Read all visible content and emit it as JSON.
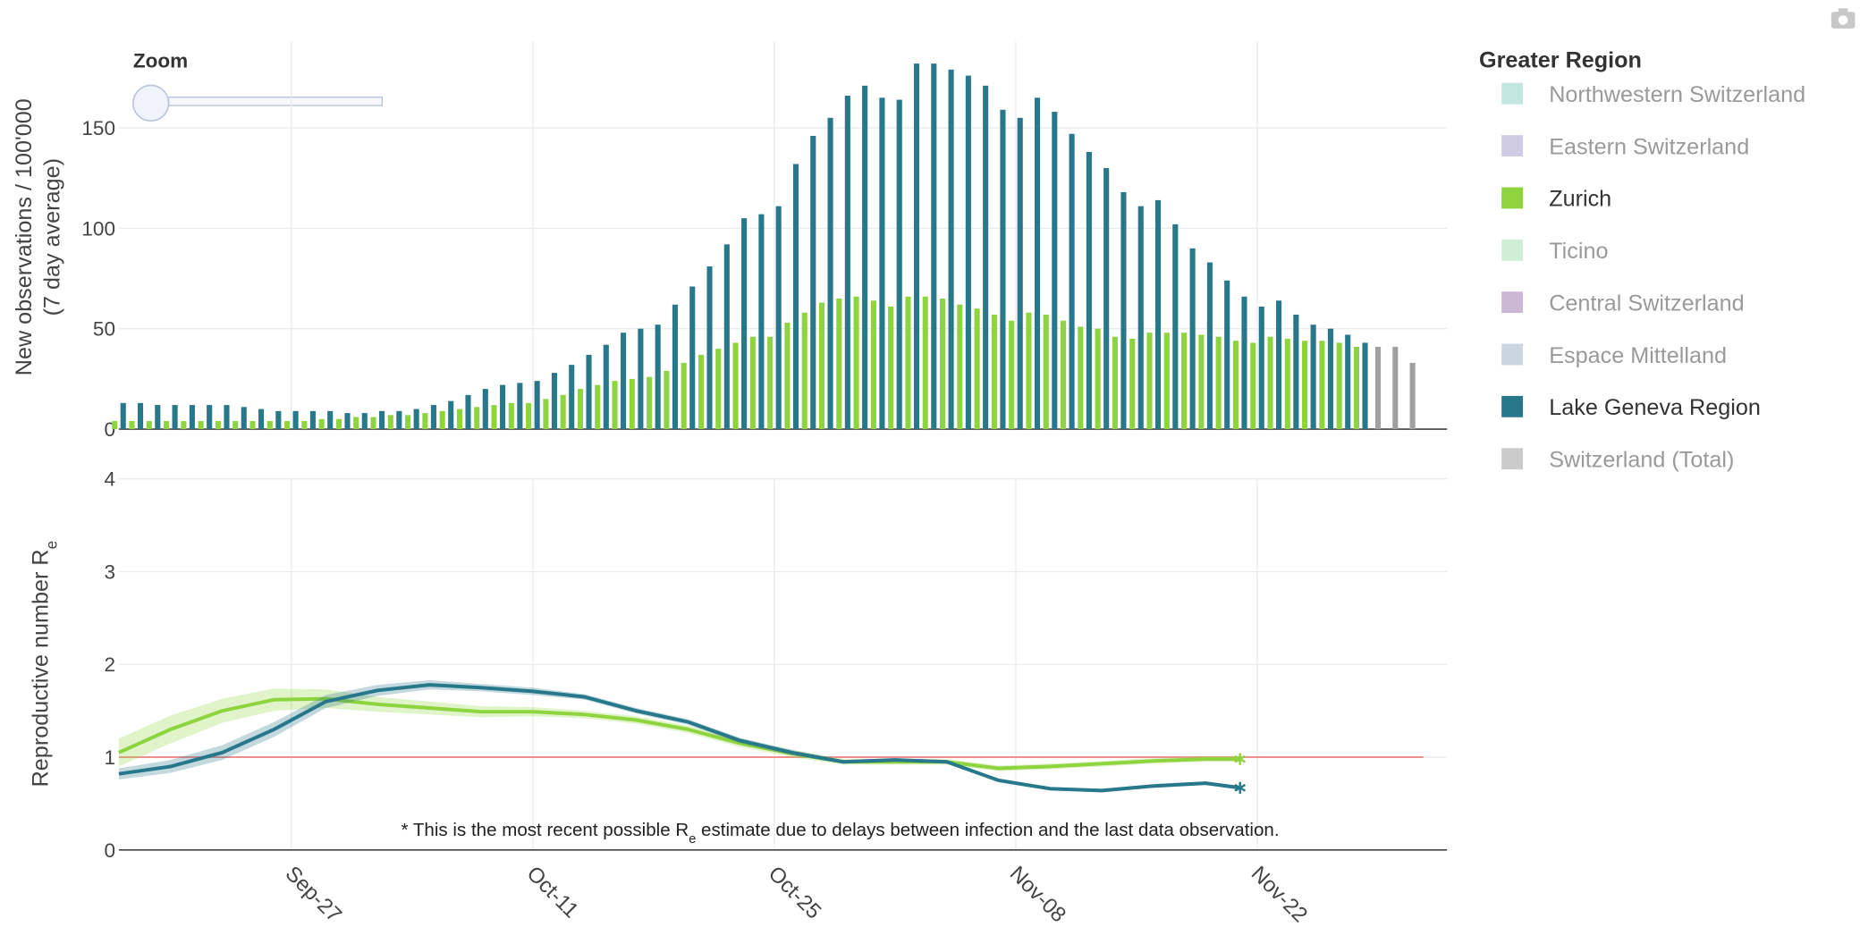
{
  "zoom": {
    "label": "Zoom"
  },
  "chart_data": [
    {
      "type": "bar",
      "ylabel": [
        "New observations / 100'000",
        "(7 day average)"
      ],
      "legend_title": "Greater Region",
      "xlim": [
        "Sep-17",
        "Dec-03"
      ],
      "xticks": [
        "Sep-27",
        "Oct-11",
        "Oct-25",
        "Nov-08",
        "Nov-22"
      ],
      "xtick_labels": false,
      "ylim": [
        0,
        193
      ],
      "yticks": [
        0,
        50,
        100,
        150
      ],
      "grid": true,
      "series": [
        {
          "name": "Northwestern Switzerland",
          "color": "#8fd3c4",
          "legend_active": false,
          "x": [],
          "values": []
        },
        {
          "name": "Eastern Switzerland",
          "color": "#a9a3cc",
          "legend_active": false,
          "x": [],
          "values": []
        },
        {
          "name": "Zurich",
          "color": "#8ed43e",
          "legend_active": true,
          "x": [
            "Sep-17",
            "Sep-18",
            "Sep-19",
            "Sep-20",
            "Sep-21",
            "Sep-22",
            "Sep-23",
            "Sep-24",
            "Sep-25",
            "Sep-26",
            "Sep-27",
            "Sep-28",
            "Sep-29",
            "Sep-30",
            "Oct-01",
            "Oct-02",
            "Oct-03",
            "Oct-04",
            "Oct-05",
            "Oct-06",
            "Oct-07",
            "Oct-08",
            "Oct-09",
            "Oct-10",
            "Oct-11",
            "Oct-12",
            "Oct-13",
            "Oct-14",
            "Oct-15",
            "Oct-16",
            "Oct-17",
            "Oct-18",
            "Oct-19",
            "Oct-20",
            "Oct-21",
            "Oct-22",
            "Oct-23",
            "Oct-24",
            "Oct-25",
            "Oct-26",
            "Oct-27",
            "Oct-28",
            "Oct-29",
            "Oct-30",
            "Oct-31",
            "Nov-01",
            "Nov-02",
            "Nov-03",
            "Nov-04",
            "Nov-05",
            "Nov-06",
            "Nov-07",
            "Nov-08",
            "Nov-09",
            "Nov-10",
            "Nov-11",
            "Nov-12",
            "Nov-13",
            "Nov-14",
            "Nov-15",
            "Nov-16",
            "Nov-17",
            "Nov-18",
            "Nov-19",
            "Nov-20",
            "Nov-21",
            "Nov-22",
            "Nov-23",
            "Nov-24",
            "Nov-25",
            "Nov-26",
            "Nov-27",
            "Nov-28"
          ],
          "values": [
            4,
            4,
            4,
            4,
            4,
            4,
            4,
            4,
            4,
            4,
            4,
            4,
            5,
            5,
            6,
            6,
            7,
            7,
            8,
            9,
            10,
            11,
            12,
            13,
            13,
            15,
            17,
            20,
            22,
            24,
            25,
            26,
            29,
            33,
            37,
            40,
            43,
            46,
            46,
            53,
            58,
            63,
            65,
            66,
            64,
            61,
            66,
            66,
            65,
            62,
            60,
            57,
            54,
            58,
            57,
            54,
            51,
            50,
            46,
            45,
            48,
            48,
            48,
            47,
            46,
            44,
            43,
            46,
            45,
            44,
            44,
            43,
            41
          ]
        },
        {
          "name": "Ticino",
          "color": "#a7e0b5",
          "legend_active": false,
          "x": [],
          "values": []
        },
        {
          "name": "Central Switzerland",
          "color": "#a07db4",
          "legend_active": false,
          "x": [],
          "values": []
        },
        {
          "name": "Espace Mittelland",
          "color": "#a0b0c8",
          "legend_active": false,
          "x": [],
          "values": []
        },
        {
          "name": "Lake Geneva Region",
          "color": "#27788a",
          "legend_active": true,
          "x": [
            "Sep-17",
            "Sep-18",
            "Sep-19",
            "Sep-20",
            "Sep-21",
            "Sep-22",
            "Sep-23",
            "Sep-24",
            "Sep-25",
            "Sep-26",
            "Sep-27",
            "Sep-28",
            "Sep-29",
            "Sep-30",
            "Oct-01",
            "Oct-02",
            "Oct-03",
            "Oct-04",
            "Oct-05",
            "Oct-06",
            "Oct-07",
            "Oct-08",
            "Oct-09",
            "Oct-10",
            "Oct-11",
            "Oct-12",
            "Oct-13",
            "Oct-14",
            "Oct-15",
            "Oct-16",
            "Oct-17",
            "Oct-18",
            "Oct-19",
            "Oct-20",
            "Oct-21",
            "Oct-22",
            "Oct-23",
            "Oct-24",
            "Oct-25",
            "Oct-26",
            "Oct-27",
            "Oct-28",
            "Oct-29",
            "Oct-30",
            "Oct-31",
            "Nov-01",
            "Nov-02",
            "Nov-03",
            "Nov-04",
            "Nov-05",
            "Nov-06",
            "Nov-07",
            "Nov-08",
            "Nov-09",
            "Nov-10",
            "Nov-11",
            "Nov-12",
            "Nov-13",
            "Nov-14",
            "Nov-15",
            "Nov-16",
            "Nov-17",
            "Nov-18",
            "Nov-19",
            "Nov-20",
            "Nov-21",
            "Nov-22",
            "Nov-23",
            "Nov-24",
            "Nov-25",
            "Nov-26",
            "Nov-27",
            "Nov-28"
          ],
          "values": [
            13,
            13,
            12,
            12,
            12,
            12,
            12,
            11,
            10,
            9,
            9,
            9,
            9,
            8,
            8,
            9,
            9,
            10,
            12,
            14,
            17,
            20,
            22,
            23,
            24,
            28,
            32,
            37,
            42,
            48,
            50,
            52,
            62,
            71,
            81,
            92,
            105,
            107,
            111,
            132,
            146,
            155,
            166,
            171,
            165,
            164,
            182,
            182,
            179,
            176,
            171,
            159,
            155,
            165,
            158,
            147,
            138,
            130,
            118,
            111,
            114,
            102,
            90,
            83,
            74,
            66,
            61,
            64,
            57,
            52,
            50,
            47,
            43
          ]
        },
        {
          "name": "Switzerland (Total)",
          "color": "#a0a0a0",
          "legend_active": false,
          "x": [
            "Nov-29",
            "Nov-30",
            "Dec-01"
          ],
          "values": [
            41,
            41,
            33
          ]
        }
      ]
    },
    {
      "type": "line",
      "ylabel": {
        "text": "Reproductive number R",
        "sub": "e"
      },
      "annotation": {
        "before": "* This is the most recent possible R",
        "sub": "e",
        "after": " estimate due to delays between infection and the last data observation."
      },
      "xlim": [
        "Sep-17",
        "Dec-03"
      ],
      "xticks": [
        "Sep-27",
        "Oct-11",
        "Oct-25",
        "Nov-08",
        "Nov-22"
      ],
      "xtick_labels": true,
      "ylim": [
        0,
        4
      ],
      "yticks": [
        0,
        1,
        2,
        3,
        4
      ],
      "grid": true,
      "threshold": {
        "value": 1,
        "color": "#f08080"
      },
      "end_marker": "asterisk",
      "series": [
        {
          "color": "#8ed43e",
          "x": [
            "Sep-17",
            "Sep-20",
            "Sep-23",
            "Sep-26",
            "Sep-29",
            "Oct-02",
            "Oct-05",
            "Oct-08",
            "Oct-11",
            "Oct-14",
            "Oct-17",
            "Oct-20",
            "Oct-23",
            "Oct-26",
            "Oct-29",
            "Nov-01",
            "Nov-04",
            "Nov-07",
            "Nov-10",
            "Nov-13",
            "Nov-16",
            "Nov-19",
            "Nov-21"
          ],
          "values": [
            1.05,
            1.3,
            1.5,
            1.62,
            1.63,
            1.57,
            1.53,
            1.49,
            1.49,
            1.46,
            1.4,
            1.3,
            1.15,
            1.04,
            0.95,
            0.95,
            0.95,
            0.88,
            0.9,
            0.93,
            0.96,
            0.98,
            0.98
          ],
          "lower": [
            0.9,
            1.15,
            1.37,
            1.5,
            1.53,
            1.49,
            1.46,
            1.43,
            1.44,
            1.42,
            1.36,
            1.26,
            1.11,
            1.0,
            0.92,
            0.92,
            0.92,
            0.85,
            0.87,
            0.9,
            0.93,
            0.95,
            0.95
          ],
          "upper": [
            1.2,
            1.45,
            1.63,
            1.74,
            1.73,
            1.65,
            1.6,
            1.55,
            1.54,
            1.5,
            1.44,
            1.34,
            1.19,
            1.08,
            0.98,
            0.98,
            0.98,
            0.91,
            0.93,
            0.96,
            0.99,
            1.01,
            1.01
          ]
        },
        {
          "color": "#27788a",
          "x": [
            "Sep-17",
            "Sep-20",
            "Sep-23",
            "Sep-26",
            "Sep-29",
            "Oct-02",
            "Oct-05",
            "Oct-08",
            "Oct-11",
            "Oct-14",
            "Oct-17",
            "Oct-20",
            "Oct-23",
            "Oct-26",
            "Oct-29",
            "Nov-01",
            "Nov-04",
            "Nov-07",
            "Nov-10",
            "Nov-13",
            "Nov-16",
            "Nov-19",
            "Nov-21"
          ],
          "values": [
            0.82,
            0.9,
            1.05,
            1.3,
            1.6,
            1.72,
            1.78,
            1.75,
            1.71,
            1.65,
            1.5,
            1.38,
            1.18,
            1.05,
            0.95,
            0.97,
            0.95,
            0.75,
            0.66,
            0.64,
            0.69,
            0.72,
            0.67
          ],
          "lower": [
            0.76,
            0.83,
            0.97,
            1.22,
            1.53,
            1.66,
            1.73,
            1.71,
            1.67,
            1.62,
            1.47,
            1.35,
            1.15,
            1.02,
            0.93,
            0.95,
            0.93,
            0.73,
            0.64,
            0.62,
            0.67,
            0.7,
            0.65
          ],
          "upper": [
            0.88,
            0.97,
            1.13,
            1.38,
            1.67,
            1.78,
            1.83,
            1.79,
            1.75,
            1.68,
            1.53,
            1.41,
            1.21,
            1.08,
            0.97,
            0.99,
            0.97,
            0.77,
            0.68,
            0.66,
            0.71,
            0.74,
            0.69
          ]
        }
      ]
    }
  ]
}
